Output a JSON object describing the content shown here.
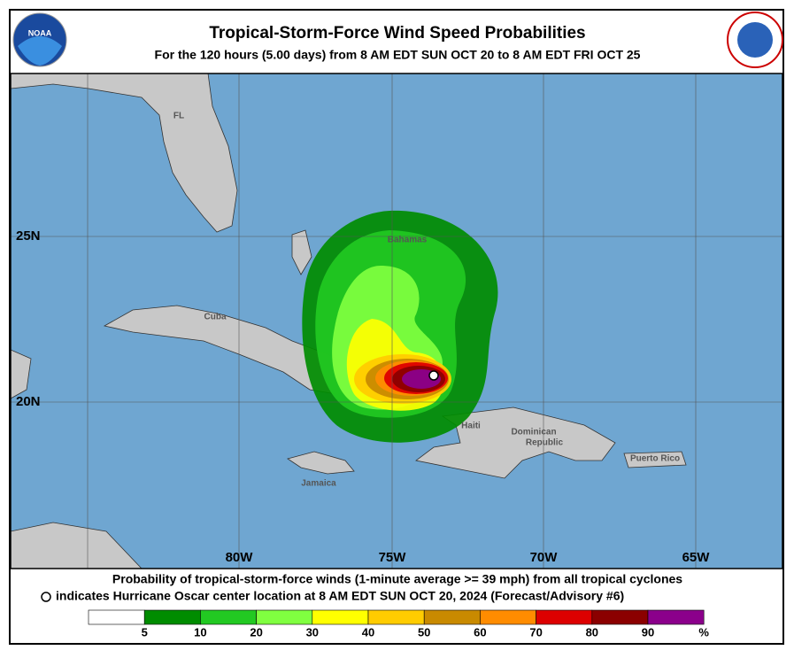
{
  "header": {
    "title": "Tropical-Storm-Force Wind Speed Probabilities",
    "subtitle": "For the 120 hours (5.00 days) from 8 AM EDT SUN OCT 20 to 8 AM EDT FRI OCT 25",
    "logo_left": "NOAA"
  },
  "map": {
    "places": [
      "FL",
      "Cuba",
      "Bahamas",
      "Haiti",
      "Dominican",
      "Republic",
      "Jamaica",
      "Puerto Rico"
    ],
    "latitudes": [
      "25N",
      "20N"
    ],
    "longitudes": [
      "80W",
      "75W",
      "70W",
      "65W"
    ]
  },
  "footer": {
    "line1": "Probability of tropical-storm-force winds (1-minute average >= 39 mph) from all tropical cyclones",
    "line2": "indicates Hurricane Oscar center location at 8 AM EDT SUN OCT 20, 2024 (Forecast/Advisory #6)"
  },
  "legend": {
    "labels": [
      "5",
      "10",
      "20",
      "30",
      "40",
      "50",
      "60",
      "70",
      "80",
      "90",
      "%"
    ],
    "colors": [
      "#ffffff",
      "#008c00",
      "#22c922",
      "#80ff40",
      "#ffff00",
      "#ffcc00",
      "#c98a00",
      "#ff8c00",
      "#dd0000",
      "#8b0000",
      "#8b008b"
    ]
  }
}
